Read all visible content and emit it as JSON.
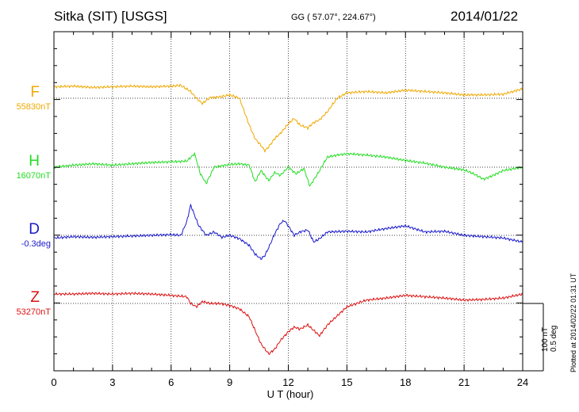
{
  "header": {
    "station": "Sitka (SIT)  [USGS]",
    "coords": "GG ( 57.07°, 224.67°)",
    "date": "2014/01/22"
  },
  "footer": {
    "plotted_at": "Plotted at 2014/02/22 01:31  UT",
    "scale_nt": "100 nT",
    "scale_deg": "0.5 deg"
  },
  "chart_data": {
    "type": "line",
    "title": "Sitka (SIT)  [USGS]",
    "xlabel": "U T (hour)",
    "ylabel": "",
    "xlim": [
      0,
      24
    ],
    "xticks": [
      "0",
      "3",
      "6",
      "9",
      "12",
      "15",
      "18",
      "21",
      "24"
    ],
    "grid": true,
    "units": "relative to channel baseline (nT; D in deg, 0.5 deg = 100 nT)",
    "series": [
      {
        "name": "F",
        "baseline_label": "55830nT",
        "color": "#f0a800",
        "x": [
          0,
          1,
          2,
          3,
          4,
          5,
          6,
          6.5,
          7,
          7.3,
          7.6,
          7.8,
          8,
          8.5,
          9,
          9.5,
          10,
          10.3,
          10.6,
          10.8,
          11,
          11.3,
          11.6,
          12,
          12.3,
          12.6,
          13,
          13.3,
          13.6,
          14,
          14.5,
          15,
          16,
          17,
          18,
          19,
          20,
          21,
          22,
          23,
          24
        ],
        "values": [
          17,
          18,
          16,
          17,
          18,
          17,
          18,
          19,
          10,
          0,
          -8,
          -3,
          1,
          2,
          5,
          0,
          -40,
          -60,
          -70,
          -78,
          -72,
          -60,
          -52,
          -38,
          -30,
          -40,
          -44,
          -36,
          -32,
          -20,
          0,
          8,
          10,
          8,
          12,
          10,
          8,
          5,
          5,
          6,
          14
        ]
      },
      {
        "name": "H",
        "baseline_label": "16070nT",
        "color": "#22dd22",
        "x": [
          0,
          1,
          2,
          3,
          4,
          5,
          6,
          6.8,
          7.2,
          7.5,
          7.8,
          8.2,
          8.6,
          9,
          9.5,
          10,
          10.3,
          10.6,
          11,
          11.3,
          11.6,
          12,
          12.4,
          12.8,
          13.1,
          13.5,
          14,
          14.5,
          15,
          16,
          17,
          18,
          19,
          20,
          21,
          21.5,
          22,
          22.5,
          23,
          24
        ],
        "values": [
          0,
          3,
          5,
          3,
          5,
          7,
          8,
          9,
          20,
          -10,
          -24,
          0,
          2,
          4,
          5,
          3,
          -22,
          -5,
          -20,
          -8,
          -12,
          0,
          -10,
          -2,
          -28,
          -10,
          15,
          18,
          20,
          18,
          15,
          10,
          6,
          0,
          -4,
          -10,
          -18,
          -12,
          -5,
          0
        ]
      },
      {
        "name": "D",
        "baseline_label": "-0.3deg",
        "color": "#1a1acc",
        "x": [
          0,
          1,
          2,
          3,
          4,
          5,
          6,
          6.5,
          6.8,
          7,
          7.2,
          7.4,
          7.8,
          8.2,
          8.6,
          9,
          9.5,
          10,
          10.3,
          10.6,
          10.8,
          11,
          11.3,
          11.6,
          11.8,
          12,
          12.3,
          12.6,
          13,
          13.3,
          13.6,
          14,
          15,
          16,
          17,
          18,
          19,
          20,
          21,
          22,
          23,
          24
        ],
        "values": [
          -4,
          -2,
          -3,
          -2,
          -1,
          0,
          1,
          0,
          20,
          45,
          30,
          15,
          0,
          5,
          -3,
          0,
          -5,
          -15,
          -28,
          -35,
          -30,
          -18,
          2,
          18,
          22,
          14,
          0,
          5,
          8,
          -10,
          -5,
          5,
          6,
          5,
          10,
          14,
          5,
          6,
          0,
          -2,
          -4,
          -10
        ]
      },
      {
        "name": "Z",
        "baseline_label": "53270nT",
        "color": "#dd1111",
        "x": [
          0,
          1,
          2,
          3,
          4,
          5,
          6,
          6.8,
          7,
          7.3,
          7.6,
          8,
          8.5,
          9,
          9.5,
          10,
          10.3,
          10.6,
          11,
          11.3,
          11.6,
          12,
          12.3,
          12.6,
          13,
          13.3,
          13.6,
          14,
          15,
          16,
          17,
          18,
          19,
          20,
          21,
          22,
          23,
          24
        ],
        "values": [
          14,
          14,
          15,
          14,
          15,
          14,
          12,
          10,
          0,
          -5,
          3,
          0,
          0,
          -3,
          -8,
          -20,
          -40,
          -60,
          -75,
          -68,
          -55,
          -42,
          -35,
          -38,
          -32,
          -40,
          -48,
          -32,
          -5,
          5,
          8,
          12,
          10,
          8,
          5,
          6,
          8,
          14
        ]
      }
    ]
  }
}
